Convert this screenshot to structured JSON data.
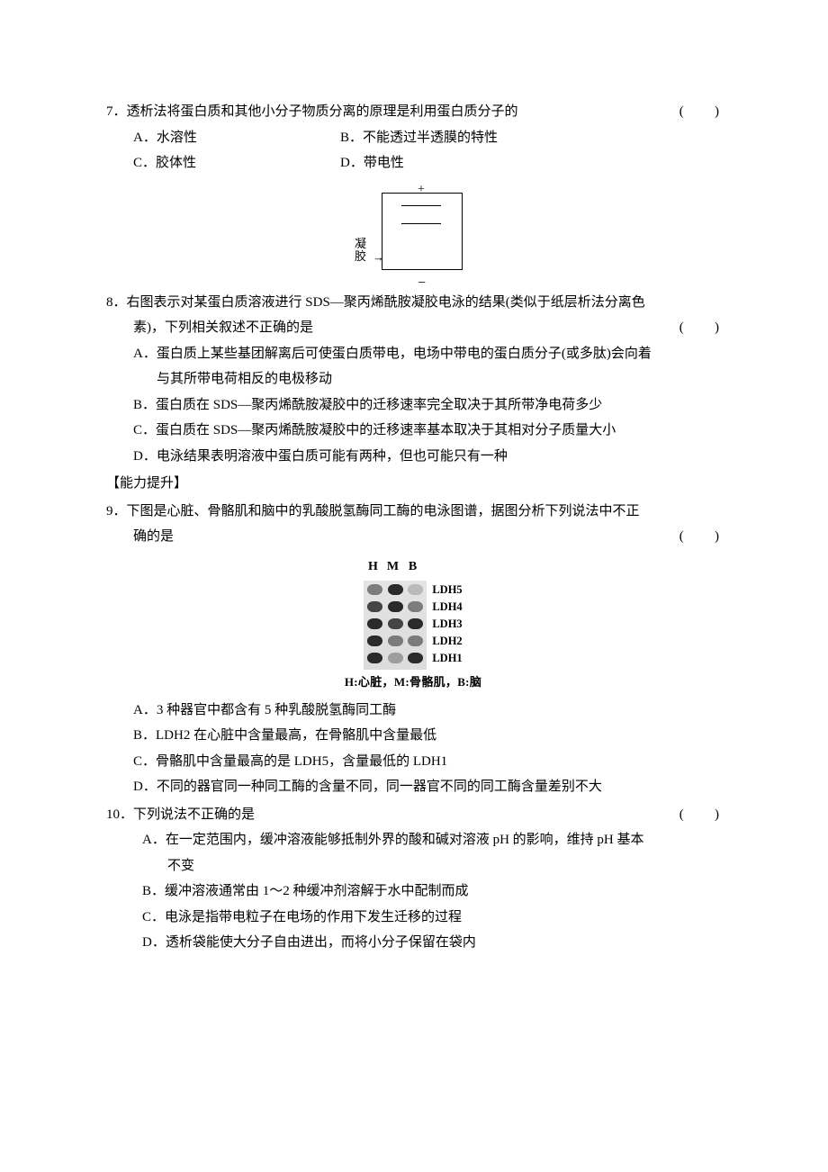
{
  "paren": "(       )",
  "q7": {
    "num": "7．",
    "text": "透析法将蛋白质和其他小分子物质分离的原理是利用蛋白质分子的",
    "A": "A．水溶性",
    "B": "B．不能透过半透膜的特性",
    "C": "C．胶体性",
    "D": "D．带电性",
    "fig": {
      "plus": "+",
      "minus": "−",
      "gel_label_l1": "凝",
      "gel_label_l2": "胶"
    }
  },
  "q8": {
    "num": "8．",
    "line1": "右图表示对某蛋白质溶液进行 SDS—聚丙烯酰胺凝胶电泳的结果(类似于纸层析法分离色",
    "line2": "素)，下列相关叙述不正确的是",
    "A1": "A．蛋白质上某些基团解离后可使蛋白质带电，电场中带电的蛋白质分子(或多肽)会向着",
    "A2": "与其所带电荷相反的电极移动",
    "B": "B．蛋白质在 SDS—聚丙烯酰胺凝胶中的迁移速率完全取决于其所带净电荷多少",
    "C": "C．蛋白质在 SDS—聚丙烯酰胺凝胶中的迁移速率基本取决于其相对分子质量大小",
    "D": "D．电泳结果表明溶液中蛋白质可能有两种，但也可能只有一种"
  },
  "section_head": "【能力提升】",
  "q9": {
    "num": "9．",
    "line1": "下图是心脏、骨骼肌和脑中的乳酸脱氢酶同工酶的电泳图谱，据图分析下列说法中不正",
    "line2": "确的是",
    "fig": {
      "head_H": "H",
      "head_M": "M",
      "head_B": "B",
      "rows": [
        "LDH5",
        "LDH4",
        "LDH3",
        "LDH2",
        "LDH1"
      ],
      "caption": "H:心脏，M:骨骼肌，B:脑",
      "intensities": [
        [
          "light",
          "band",
          "vfaint"
        ],
        [
          "mid",
          "band",
          "light"
        ],
        [
          "band",
          "mid",
          "band"
        ],
        [
          "band",
          "light",
          "light"
        ],
        [
          "band",
          "faint",
          "band"
        ]
      ]
    },
    "A": "A．3 种器官中都含有 5 种乳酸脱氢酶同工酶",
    "B": "B．LDH2 在心脏中含量最高，在骨骼肌中含量最低",
    "C": "C．骨骼肌中含量最高的是 LDH5，含量最低的 LDH1",
    "D": "D．不同的器官同一种同工酶的含量不同，同一器官不同的同工酶含量差别不大"
  },
  "q10": {
    "num": "10．",
    "text": "下列说法不正确的是",
    "A1": "A．在一定范围内，缓冲溶液能够抵制外界的酸和碱对溶液 pH 的影响，维持 pH 基本",
    "A2": "不变",
    "B": "B．缓冲溶液通常由 1～2 种缓冲剂溶解于水中配制而成",
    "C": "C．电泳是指带电粒子在电场的作用下发生迁移的过程",
    "D": "D．透析袋能使大分子自由进出，而将小分子保留在袋内"
  }
}
